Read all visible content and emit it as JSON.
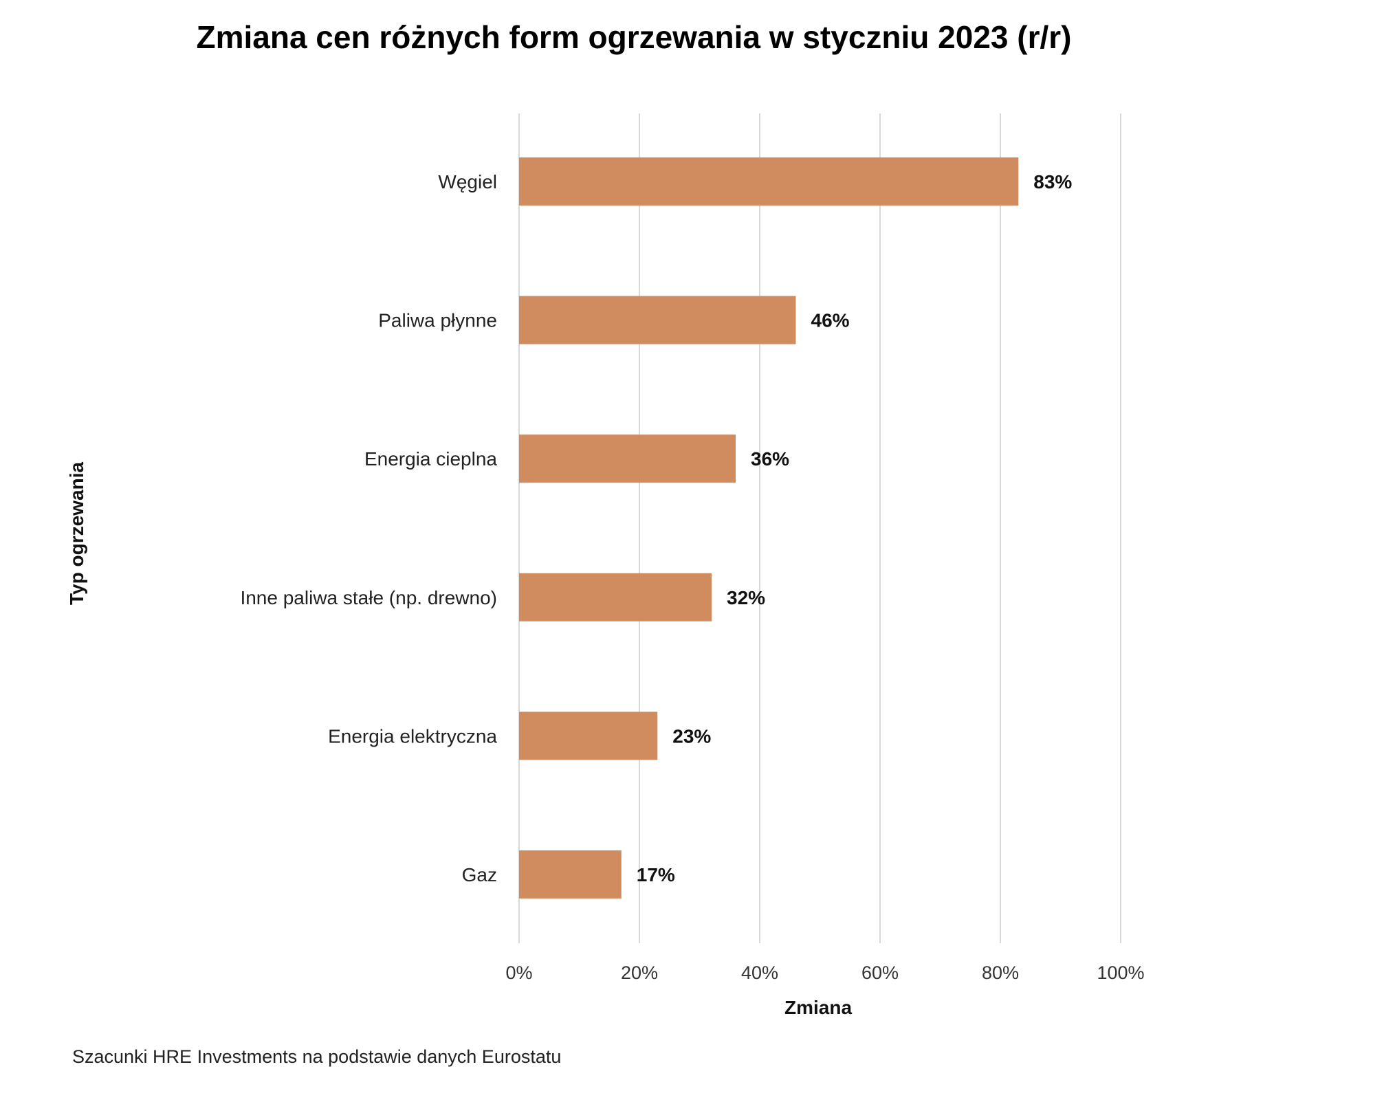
{
  "chart_data": {
    "type": "bar",
    "orientation": "horizontal",
    "title": "Zmiana cen różnych form ogrzewania w styczniu 2023 (r/r)",
    "xlabel": "Zmiana",
    "ylabel": "Typ ogrzewania",
    "categories": [
      "Węgiel",
      "Paliwa płynne",
      "Energia cieplna",
      "Inne paliwa stałe (np. drewno)",
      "Energia elektryczna",
      "Gaz"
    ],
    "values": [
      83,
      46,
      36,
      32,
      23,
      17
    ],
    "value_labels": [
      "83%",
      "46%",
      "36%",
      "32%",
      "23%",
      "17%"
    ],
    "xlim": [
      0,
      100
    ],
    "xticks": [
      "0%",
      "20%",
      "40%",
      "60%",
      "80%",
      "100%"
    ],
    "grid": "vertical",
    "legend": "none",
    "bar_color": "#d08b5e"
  },
  "source_note": "Szacunki HRE Investments na podstawie danych Eurostatu"
}
